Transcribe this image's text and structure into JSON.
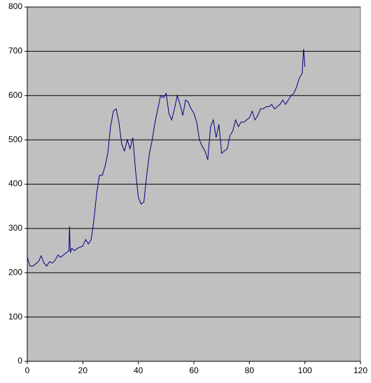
{
  "chart_data": {
    "type": "line",
    "x": [
      0,
      1,
      2,
      3,
      4,
      5,
      6,
      7,
      8,
      9,
      10,
      11,
      12,
      13,
      14,
      15,
      15.2,
      15.5,
      16,
      17,
      18,
      19,
      20,
      21,
      22,
      23,
      24,
      25,
      26,
      27,
      28,
      29,
      30,
      31,
      32,
      33,
      34,
      35,
      36,
      37,
      38,
      39,
      40,
      41,
      42,
      43,
      44,
      45,
      46,
      47,
      48,
      49,
      50,
      51,
      52,
      53,
      54,
      55,
      56,
      57,
      58,
      59,
      60,
      61,
      62,
      63,
      64,
      65,
      66,
      67,
      68,
      69,
      70,
      71,
      72,
      73,
      74,
      75,
      76,
      77,
      78,
      79,
      80,
      81,
      82,
      83,
      84,
      85,
      86,
      87,
      88,
      89,
      90,
      91,
      92,
      93,
      94,
      95,
      96,
      97,
      98,
      99,
      99.5,
      100
    ],
    "series": [
      {
        "color": "#000080",
        "values": [
          235,
          215,
          215,
          220,
          225,
          238,
          222,
          215,
          225,
          222,
          228,
          240,
          235,
          240,
          245,
          250,
          305,
          245,
          255,
          250,
          255,
          258,
          260,
          275,
          265,
          275,
          320,
          380,
          420,
          420,
          440,
          470,
          530,
          565,
          570,
          540,
          490,
          475,
          500,
          480,
          505,
          430,
          370,
          355,
          360,
          420,
          470,
          500,
          540,
          570,
          600,
          595,
          605,
          560,
          545,
          570,
          600,
          580,
          555,
          590,
          585,
          570,
          560,
          540,
          500,
          485,
          475,
          455,
          530,
          545,
          505,
          535,
          470,
          475,
          480,
          510,
          520,
          545,
          530,
          540,
          540,
          545,
          550,
          565,
          545,
          555,
          570,
          570,
          575,
          575,
          580,
          570,
          575,
          580,
          590,
          580,
          590,
          600,
          605,
          620,
          640,
          650,
          705,
          665
        ]
      }
    ],
    "xlim": [
      0,
      120
    ],
    "xticks": [
      0,
      20,
      40,
      60,
      80,
      100,
      120
    ],
    "ylim": [
      0,
      800
    ],
    "yticks": [
      0,
      100,
      200,
      300,
      400,
      500,
      600,
      700,
      800
    ],
    "grid": true
  }
}
